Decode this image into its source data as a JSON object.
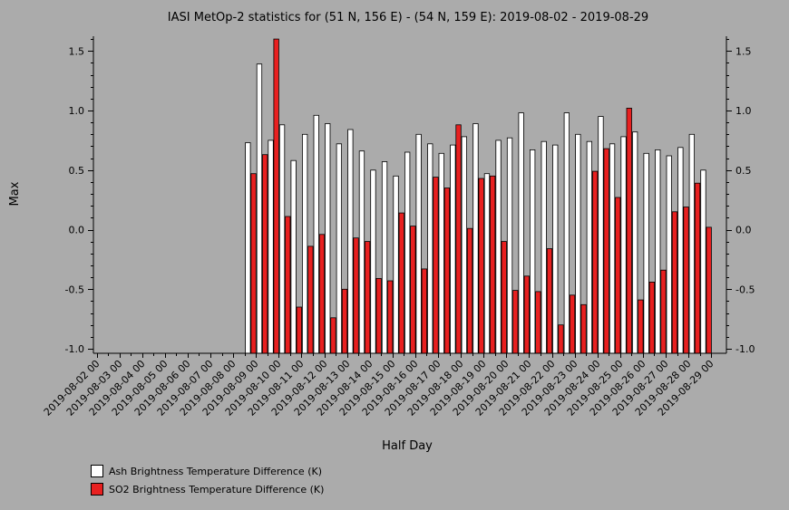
{
  "chart_data": {
    "type": "bar",
    "title": "IASI MetOp-2 statistics for (51 N, 156 E) - (54 N, 159 E): 2019-08-02 - 2019-08-29",
    "xlabel": "Half Day",
    "ylabel": "Max",
    "ylim": [
      -1.0,
      1.6
    ],
    "yticks": [
      1.5,
      1.0,
      0.5,
      0.0,
      -0.5,
      -1.0
    ],
    "ytick_labels": [
      "1.5",
      "1.0",
      "0.5",
      "0.0",
      "-0.5",
      "-1.0"
    ],
    "xtick_labels": [
      "2019-08-02 00",
      "2019-08-03 00",
      "2019-08-04 00",
      "2019-08-05 00",
      "2019-08-06 00",
      "2019-08-07 00",
      "2019-08-08 00",
      "2019-08-09 00",
      "2019-08-10 00",
      "2019-08-11 00",
      "2019-08-12 00",
      "2019-08-13 00",
      "2019-08-14 00",
      "2019-08-15 00",
      "2019-08-16 00",
      "2019-08-17 00",
      "2019-08-18 00",
      "2019-08-19 00",
      "2019-08-20 00",
      "2019-08-21 00",
      "2019-08-22 00",
      "2019-08-23 00",
      "2019-08-24 00",
      "2019-08-25 00",
      "2019-08-26 00",
      "2019-08-27 00",
      "2019-08-28 00",
      "2019-08-29 00"
    ],
    "categories": [
      "2019-08-08 12",
      "2019-08-09 00",
      "2019-08-09 12",
      "2019-08-10 00",
      "2019-08-10 12",
      "2019-08-11 00",
      "2019-08-11 12",
      "2019-08-12 00",
      "2019-08-12 12",
      "2019-08-13 00",
      "2019-08-13 12",
      "2019-08-14 00",
      "2019-08-14 12",
      "2019-08-15 00",
      "2019-08-15 12",
      "2019-08-16 00",
      "2019-08-16 12",
      "2019-08-17 00",
      "2019-08-17 12",
      "2019-08-18 00",
      "2019-08-18 12",
      "2019-08-19 00",
      "2019-08-19 12",
      "2019-08-20 00",
      "2019-08-20 12",
      "2019-08-21 00",
      "2019-08-21 12",
      "2019-08-22 00",
      "2019-08-22 12",
      "2019-08-23 00",
      "2019-08-23 12",
      "2019-08-24 00",
      "2019-08-24 12",
      "2019-08-25 00",
      "2019-08-25 12",
      "2019-08-26 00",
      "2019-08-26 12",
      "2019-08-27 00",
      "2019-08-27 12",
      "2019-08-28 00",
      "2019-08-28 12"
    ],
    "series": [
      {
        "name": "Ash Brightness Temperature Difference (K)",
        "color": "#ffffff",
        "values": [
          0.73,
          1.39,
          0.75,
          0.88,
          0.58,
          0.8,
          0.96,
          0.89,
          0.72,
          0.84,
          0.66,
          0.5,
          0.57,
          0.45,
          0.65,
          0.8,
          0.72,
          0.64,
          0.71,
          0.78,
          0.89,
          0.47,
          0.75,
          0.77,
          0.98,
          0.67,
          0.74,
          0.71,
          0.98,
          0.8,
          0.74,
          0.95,
          0.72,
          0.78,
          0.82,
          0.64,
          0.67,
          0.62,
          0.69,
          0.8,
          0.5
        ]
      },
      {
        "name": "SO2 Brightness Temperature Difference (K)",
        "color": "#e82020",
        "values": [
          0.47,
          0.63,
          1.6,
          0.11,
          -0.65,
          -0.14,
          -0.04,
          -0.74,
          -0.5,
          -0.07,
          -0.1,
          -0.41,
          -0.43,
          0.14,
          0.03,
          -0.33,
          0.44,
          0.35,
          0.88,
          0.01,
          0.43,
          0.45,
          -0.1,
          -0.51,
          -0.39,
          -0.52,
          -0.16,
          -0.8,
          -0.55,
          -0.63,
          0.49,
          0.68,
          0.27,
          1.02,
          -0.59,
          -0.44,
          -0.34,
          0.15,
          0.19,
          0.39,
          0.02
        ]
      }
    ],
    "legend_position": "bottom-left",
    "grid": false
  }
}
